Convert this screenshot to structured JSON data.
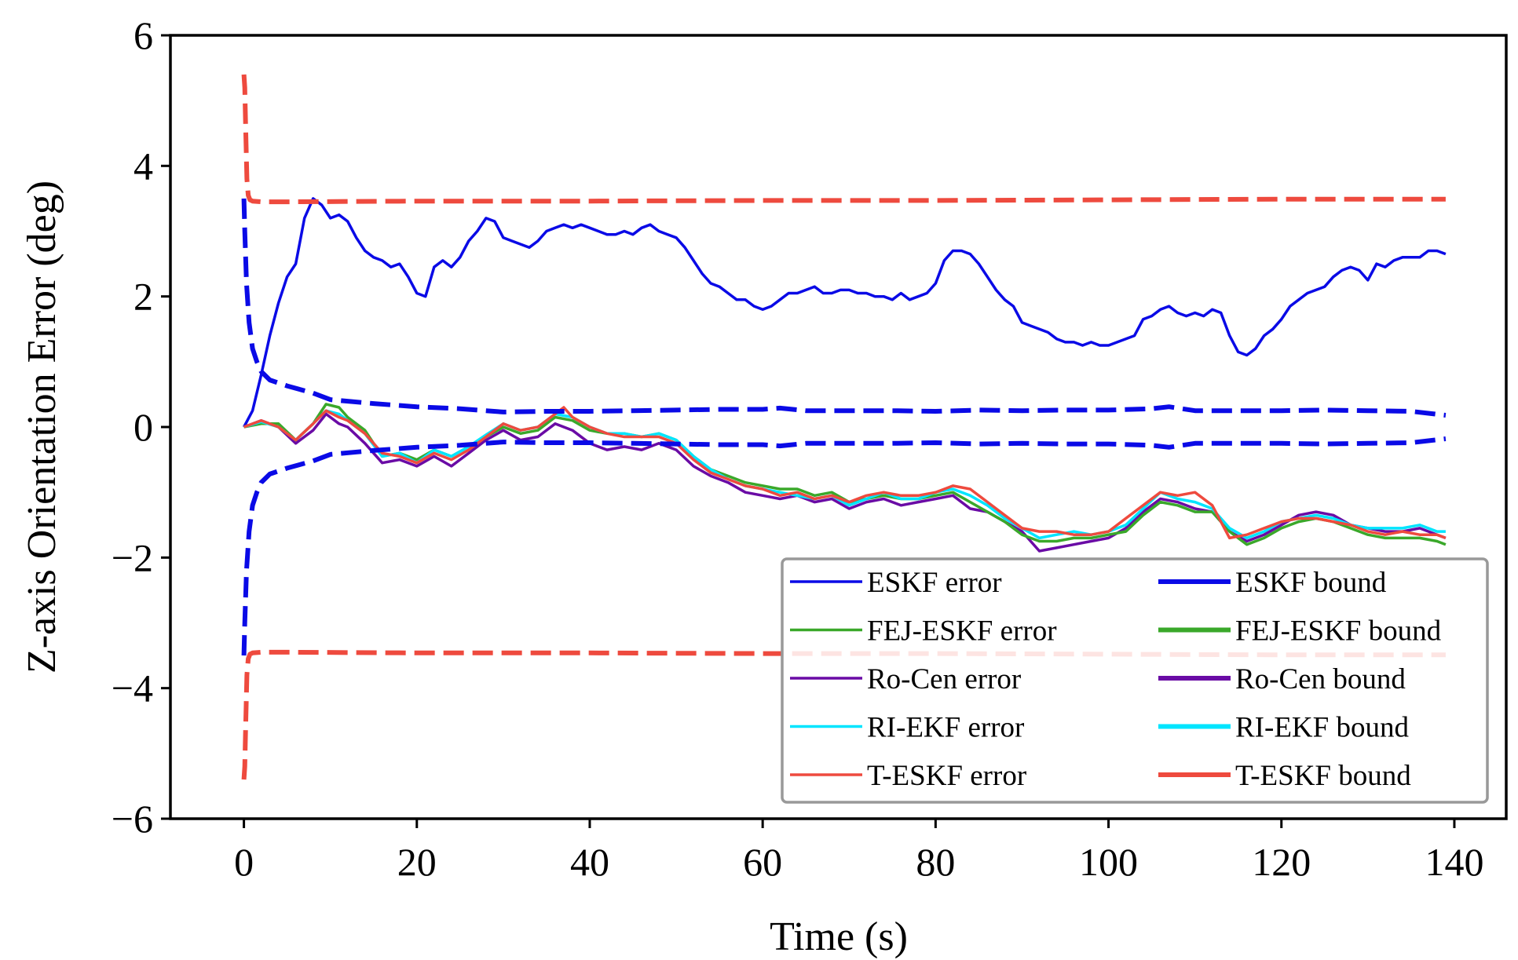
{
  "chart_data": {
    "type": "line",
    "title": "",
    "xlabel": "Time (s)",
    "ylabel": "Z-axis Orientation Error (deg)",
    "xlim": [
      -8.5,
      146
    ],
    "ylim": [
      -6,
      6
    ],
    "xticks": [
      0,
      20,
      40,
      60,
      80,
      100,
      120,
      140
    ],
    "yticks": [
      -6,
      -4,
      -2,
      0,
      2,
      4,
      6
    ],
    "ytick_labels": [
      "−6",
      "−4",
      "−2",
      "0",
      "2",
      "4",
      "6"
    ],
    "xtick_labels": [
      "0",
      "20",
      "40",
      "60",
      "80",
      "100",
      "120",
      "140"
    ],
    "grid": false,
    "legend_position": "lower-right",
    "colors": {
      "eskf": "#0a0ae6",
      "fej": "#3aa82a",
      "rocen": "#6a0ba5",
      "riekf": "#00e5ff",
      "teskf": "#ee4a3e"
    },
    "legend": [
      {
        "label": "ESKF error",
        "color": "#0a0ae6",
        "style": "error"
      },
      {
        "label": "ESKF bound",
        "color": "#0a0ae6",
        "style": "bound"
      },
      {
        "label": "FEJ-ESKF error",
        "color": "#3aa82a",
        "style": "error"
      },
      {
        "label": "FEJ-ESKF bound",
        "color": "#3aa82a",
        "style": "bound"
      },
      {
        "label": "Ro-Cen error",
        "color": "#6a0ba5",
        "style": "error"
      },
      {
        "label": "Ro-Cen bound",
        "color": "#6a0ba5",
        "style": "bound"
      },
      {
        "label": "RI-EKF error",
        "color": "#00e5ff",
        "style": "error"
      },
      {
        "label": "RI-EKF bound",
        "color": "#00e5ff",
        "style": "bound"
      },
      {
        "label": "T-ESKF error",
        "color": "#ee4a3e",
        "style": "error"
      },
      {
        "label": "T-ESKF bound",
        "color": "#ee4a3e",
        "style": "bound"
      }
    ],
    "series": [
      {
        "name": "ESKF bound upper",
        "color": "#0a0ae6",
        "style": "bound",
        "x": [
          0,
          0.1,
          0.3,
          0.6,
          1,
          1.5,
          2,
          3,
          5,
          8,
          10,
          15,
          20,
          25,
          30,
          35,
          40,
          45,
          50,
          55,
          60,
          62,
          65,
          70,
          75,
          80,
          85,
          90,
          95,
          100,
          105,
          107,
          110,
          115,
          120,
          125,
          130,
          135,
          139
        ],
        "y": [
          3.5,
          3.0,
          2.2,
          1.6,
          1.2,
          1.0,
          0.85,
          0.72,
          0.63,
          0.52,
          0.42,
          0.36,
          0.31,
          0.28,
          0.23,
          0.24,
          0.24,
          0.25,
          0.26,
          0.27,
          0.27,
          0.29,
          0.25,
          0.25,
          0.25,
          0.24,
          0.26,
          0.25,
          0.26,
          0.26,
          0.28,
          0.31,
          0.25,
          0.25,
          0.25,
          0.26,
          0.25,
          0.24,
          0.18
        ]
      },
      {
        "name": "ESKF bound lower",
        "color": "#0a0ae6",
        "style": "bound",
        "x": [
          0,
          0.1,
          0.3,
          0.6,
          1,
          1.5,
          2,
          3,
          5,
          8,
          10,
          15,
          20,
          25,
          30,
          35,
          40,
          45,
          50,
          55,
          60,
          62,
          65,
          70,
          75,
          80,
          85,
          90,
          95,
          100,
          105,
          107,
          110,
          115,
          120,
          125,
          130,
          135,
          139
        ],
        "y": [
          -3.5,
          -3.0,
          -2.2,
          -1.6,
          -1.2,
          -1.0,
          -0.85,
          -0.72,
          -0.63,
          -0.52,
          -0.42,
          -0.36,
          -0.31,
          -0.28,
          -0.23,
          -0.24,
          -0.24,
          -0.25,
          -0.26,
          -0.27,
          -0.27,
          -0.29,
          -0.25,
          -0.25,
          -0.25,
          -0.24,
          -0.26,
          -0.25,
          -0.26,
          -0.26,
          -0.28,
          -0.31,
          -0.25,
          -0.25,
          -0.25,
          -0.26,
          -0.25,
          -0.24,
          -0.18
        ]
      },
      {
        "name": "T-ESKF bound upper",
        "color": "#ee4a3e",
        "style": "bound",
        "x": [
          0,
          0.1,
          0.2,
          0.35,
          0.5,
          0.7,
          1,
          2,
          5,
          20,
          40,
          60,
          80,
          100,
          120,
          139
        ],
        "y": [
          5.4,
          5.2,
          4.6,
          3.8,
          3.55,
          3.48,
          3.46,
          3.45,
          3.45,
          3.46,
          3.46,
          3.47,
          3.47,
          3.48,
          3.49,
          3.49
        ]
      },
      {
        "name": "T-ESKF bound lower",
        "color": "#ee4a3e",
        "style": "bound",
        "x": [
          0,
          0.1,
          0.2,
          0.35,
          0.5,
          0.7,
          1,
          2,
          5,
          20,
          40,
          60,
          80,
          100,
          120,
          139
        ],
        "y": [
          -5.4,
          -5.2,
          -4.6,
          -3.8,
          -3.55,
          -3.48,
          -3.46,
          -3.45,
          -3.45,
          -3.46,
          -3.46,
          -3.47,
          -3.47,
          -3.48,
          -3.49,
          -3.49
        ]
      },
      {
        "name": "ESKF error",
        "color": "#0a0ae6",
        "style": "error",
        "x": [
          0,
          1,
          2,
          3,
          4,
          5,
          6,
          7,
          8,
          9,
          10,
          11,
          12,
          13,
          14,
          15,
          16,
          17,
          18,
          19,
          20,
          21,
          22,
          23,
          24,
          25,
          26,
          27,
          28,
          29,
          30,
          31,
          32,
          33,
          34,
          35,
          36,
          37,
          38,
          39,
          40,
          41,
          42,
          43,
          44,
          45,
          46,
          47,
          48,
          49,
          50,
          51,
          52,
          53,
          54,
          55,
          56,
          57,
          58,
          59,
          60,
          61,
          62,
          63,
          64,
          65,
          66,
          67,
          68,
          69,
          70,
          71,
          72,
          73,
          74,
          75,
          76,
          77,
          78,
          79,
          80,
          81,
          82,
          83,
          84,
          85,
          86,
          87,
          88,
          89,
          90,
          91,
          92,
          93,
          94,
          95,
          96,
          97,
          98,
          99,
          100,
          101,
          102,
          103,
          104,
          105,
          106,
          107,
          108,
          109,
          110,
          111,
          112,
          113,
          114,
          115,
          116,
          117,
          118,
          119,
          120,
          121,
          122,
          123,
          124,
          125,
          126,
          127,
          128,
          129,
          130,
          131,
          132,
          133,
          134,
          135,
          136,
          137,
          138,
          139
        ],
        "y": [
          0.0,
          0.25,
          0.8,
          1.4,
          1.9,
          2.3,
          2.5,
          3.2,
          3.5,
          3.4,
          3.2,
          3.25,
          3.15,
          2.9,
          2.7,
          2.6,
          2.55,
          2.45,
          2.5,
          2.3,
          2.05,
          2.0,
          2.45,
          2.55,
          2.45,
          2.6,
          2.85,
          3.0,
          3.2,
          3.15,
          2.9,
          2.85,
          2.8,
          2.75,
          2.85,
          3.0,
          3.05,
          3.1,
          3.05,
          3.1,
          3.05,
          3.0,
          2.95,
          2.95,
          3.0,
          2.95,
          3.05,
          3.1,
          3.0,
          2.95,
          2.9,
          2.75,
          2.55,
          2.35,
          2.2,
          2.15,
          2.05,
          1.95,
          1.95,
          1.85,
          1.8,
          1.85,
          1.95,
          2.05,
          2.05,
          2.1,
          2.15,
          2.05,
          2.05,
          2.1,
          2.1,
          2.05,
          2.05,
          2.0,
          2.0,
          1.95,
          2.05,
          1.95,
          2.0,
          2.05,
          2.2,
          2.55,
          2.7,
          2.7,
          2.65,
          2.5,
          2.3,
          2.1,
          1.95,
          1.85,
          1.6,
          1.55,
          1.5,
          1.45,
          1.35,
          1.3,
          1.3,
          1.25,
          1.3,
          1.25,
          1.25,
          1.3,
          1.35,
          1.4,
          1.65,
          1.7,
          1.8,
          1.85,
          1.75,
          1.7,
          1.75,
          1.7,
          1.8,
          1.75,
          1.4,
          1.15,
          1.1,
          1.2,
          1.4,
          1.5,
          1.65,
          1.85,
          1.95,
          2.05,
          2.1,
          2.15,
          2.3,
          2.4,
          2.45,
          2.4,
          2.25,
          2.5,
          2.45,
          2.55,
          2.6,
          2.6,
          2.6,
          2.7,
          2.7,
          2.65
        ]
      },
      {
        "name": "Ro-Cen error",
        "color": "#6a0ba5",
        "style": "error",
        "x": [
          0,
          2,
          4,
          6,
          8,
          9.5,
          11,
          12,
          14,
          16,
          18,
          20,
          22,
          24,
          26,
          28,
          30,
          32,
          34,
          36,
          38,
          40,
          42,
          44,
          46,
          48,
          50,
          52,
          54,
          56,
          58,
          60,
          62,
          64,
          66,
          68,
          70,
          72,
          74,
          76,
          78,
          80,
          82,
          84,
          86,
          88,
          90,
          92,
          94,
          96,
          98,
          100,
          102,
          104,
          106,
          108,
          110,
          112,
          114,
          116,
          118,
          120,
          122,
          124,
          126,
          128,
          130,
          132,
          134,
          136,
          138,
          139
        ],
        "y": [
          0.0,
          0.1,
          0.0,
          -0.25,
          -0.05,
          0.2,
          0.05,
          0.0,
          -0.25,
          -0.55,
          -0.5,
          -0.6,
          -0.45,
          -0.6,
          -0.4,
          -0.2,
          -0.05,
          -0.2,
          -0.15,
          0.05,
          -0.05,
          -0.25,
          -0.35,
          -0.3,
          -0.35,
          -0.25,
          -0.35,
          -0.6,
          -0.75,
          -0.85,
          -1.0,
          -1.05,
          -1.1,
          -1.05,
          -1.15,
          -1.1,
          -1.25,
          -1.15,
          -1.1,
          -1.2,
          -1.15,
          -1.1,
          -1.05,
          -1.25,
          -1.3,
          -1.45,
          -1.6,
          -1.9,
          -1.85,
          -1.8,
          -1.75,
          -1.7,
          -1.55,
          -1.3,
          -1.1,
          -1.15,
          -1.25,
          -1.3,
          -1.6,
          -1.75,
          -1.65,
          -1.5,
          -1.35,
          -1.3,
          -1.35,
          -1.5,
          -1.55,
          -1.6,
          -1.6,
          -1.55,
          -1.65,
          -1.7
        ]
      },
      {
        "name": "FEJ-ESKF error",
        "color": "#3aa82a",
        "style": "error",
        "x": [
          0,
          2,
          4,
          6,
          8,
          9.5,
          11,
          12,
          14,
          16,
          18,
          20,
          22,
          24,
          26,
          28,
          30,
          32,
          34,
          36,
          38,
          40,
          42,
          44,
          46,
          48,
          50,
          52,
          54,
          56,
          58,
          60,
          62,
          64,
          66,
          68,
          70,
          72,
          74,
          76,
          78,
          80,
          82,
          84,
          86,
          88,
          90,
          92,
          94,
          96,
          98,
          100,
          102,
          104,
          106,
          108,
          110,
          112,
          114,
          116,
          118,
          120,
          122,
          124,
          126,
          128,
          130,
          132,
          134,
          136,
          138,
          139
        ],
        "y": [
          0.0,
          0.05,
          0.05,
          -0.2,
          0.05,
          0.35,
          0.3,
          0.15,
          -0.05,
          -0.45,
          -0.4,
          -0.5,
          -0.35,
          -0.45,
          -0.3,
          -0.15,
          0.0,
          -0.1,
          -0.05,
          0.15,
          0.1,
          -0.05,
          -0.1,
          -0.1,
          -0.15,
          -0.1,
          -0.2,
          -0.45,
          -0.65,
          -0.75,
          -0.85,
          -0.9,
          -0.95,
          -0.95,
          -1.05,
          -1.0,
          -1.15,
          -1.1,
          -1.05,
          -1.1,
          -1.1,
          -1.05,
          -1.0,
          -1.15,
          -1.3,
          -1.45,
          -1.65,
          -1.75,
          -1.75,
          -1.7,
          -1.7,
          -1.65,
          -1.6,
          -1.35,
          -1.15,
          -1.2,
          -1.3,
          -1.3,
          -1.6,
          -1.8,
          -1.7,
          -1.55,
          -1.45,
          -1.4,
          -1.45,
          -1.55,
          -1.65,
          -1.7,
          -1.7,
          -1.7,
          -1.75,
          -1.8
        ]
      },
      {
        "name": "RI-EKF error",
        "color": "#00e5ff",
        "style": "error",
        "x": [
          0,
          2,
          4,
          6,
          8,
          9.5,
          11,
          12,
          14,
          16,
          18,
          20,
          22,
          24,
          26,
          28,
          30,
          32,
          34,
          36,
          38,
          40,
          42,
          44,
          46,
          48,
          50,
          52,
          54,
          56,
          58,
          60,
          62,
          64,
          66,
          68,
          70,
          72,
          74,
          76,
          78,
          80,
          82,
          84,
          86,
          88,
          90,
          92,
          94,
          96,
          98,
          100,
          102,
          104,
          106,
          108,
          110,
          112,
          114,
          116,
          118,
          120,
          122,
          124,
          126,
          128,
          130,
          132,
          134,
          136,
          138,
          139
        ],
        "y": [
          0.0,
          0.08,
          0.0,
          -0.2,
          0.05,
          0.25,
          0.2,
          0.1,
          -0.1,
          -0.45,
          -0.4,
          -0.55,
          -0.35,
          -0.45,
          -0.3,
          -0.12,
          0.05,
          -0.05,
          0.0,
          0.2,
          0.15,
          0.0,
          -0.1,
          -0.1,
          -0.15,
          -0.1,
          -0.2,
          -0.45,
          -0.65,
          -0.8,
          -0.9,
          -0.95,
          -1.0,
          -1.05,
          -1.1,
          -1.05,
          -1.2,
          -1.1,
          -1.0,
          -1.1,
          -1.1,
          -1.0,
          -0.95,
          -1.05,
          -1.2,
          -1.4,
          -1.55,
          -1.7,
          -1.65,
          -1.6,
          -1.65,
          -1.6,
          -1.5,
          -1.25,
          -1.0,
          -1.1,
          -1.15,
          -1.25,
          -1.55,
          -1.7,
          -1.6,
          -1.45,
          -1.4,
          -1.35,
          -1.4,
          -1.5,
          -1.55,
          -1.55,
          -1.55,
          -1.5,
          -1.6,
          -1.6
        ]
      },
      {
        "name": "T-ESKF error",
        "color": "#ee4a3e",
        "style": "error",
        "x": [
          0,
          2,
          4,
          6,
          8,
          9.5,
          11,
          12,
          14,
          16,
          18,
          20,
          22,
          24,
          26,
          28,
          30,
          32,
          34,
          36,
          37,
          38,
          40,
          42,
          44,
          46,
          48,
          50,
          52,
          54,
          56,
          58,
          60,
          62,
          64,
          66,
          68,
          70,
          72,
          74,
          76,
          78,
          80,
          82,
          84,
          86,
          88,
          90,
          92,
          94,
          96,
          98,
          100,
          102,
          104,
          106,
          108,
          110,
          112,
          114,
          116,
          118,
          120,
          122,
          124,
          126,
          128,
          130,
          132,
          134,
          136,
          138,
          139
        ],
        "y": [
          0.0,
          0.1,
          0.0,
          -0.2,
          0.05,
          0.25,
          0.15,
          0.1,
          -0.1,
          -0.4,
          -0.45,
          -0.55,
          -0.4,
          -0.5,
          -0.35,
          -0.15,
          0.05,
          -0.05,
          0.0,
          0.2,
          0.3,
          0.15,
          0.0,
          -0.1,
          -0.15,
          -0.15,
          -0.15,
          -0.25,
          -0.5,
          -0.7,
          -0.8,
          -0.9,
          -0.95,
          -1.05,
          -1.0,
          -1.1,
          -1.05,
          -1.15,
          -1.05,
          -1.0,
          -1.05,
          -1.05,
          -1.0,
          -0.9,
          -0.95,
          -1.15,
          -1.35,
          -1.55,
          -1.6,
          -1.6,
          -1.65,
          -1.65,
          -1.6,
          -1.4,
          -1.2,
          -1.0,
          -1.05,
          -1.0,
          -1.2,
          -1.7,
          -1.65,
          -1.55,
          -1.45,
          -1.4,
          -1.4,
          -1.45,
          -1.5,
          -1.6,
          -1.65,
          -1.6,
          -1.65,
          -1.65,
          -1.7
        ]
      }
    ]
  }
}
